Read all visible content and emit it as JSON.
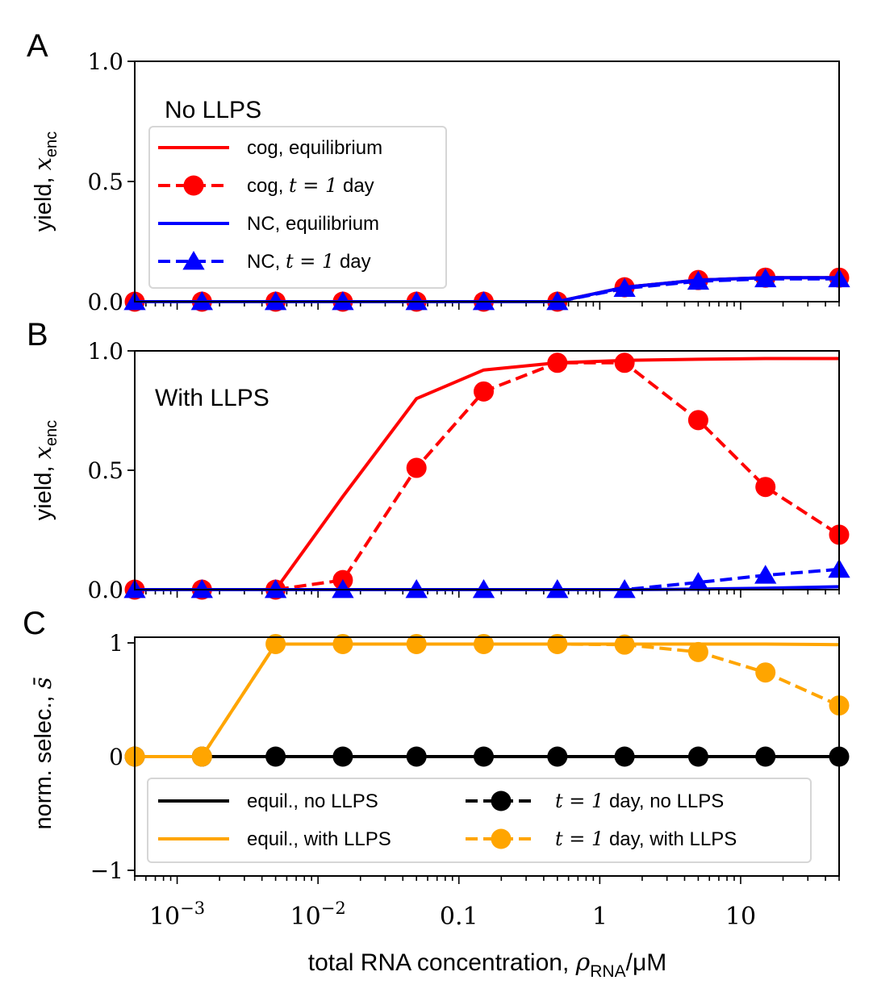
{
  "figure": {
    "xlabel": "total RNA concentration, ρRNA/μM",
    "xlabel_main": "total RNA concentration, ",
    "xlabel_rho": "ρ",
    "xlabel_sub": "RNA",
    "xlabel_unit": "/μM",
    "xtick_labels": [
      {
        "base": "10",
        "exp": "−3",
        "value": 0.001
      },
      {
        "base": "10",
        "exp": "−2",
        "value": 0.01
      },
      {
        "base": "0.1",
        "exp": "",
        "value": 0.1
      },
      {
        "base": "1",
        "exp": "",
        "value": 1
      },
      {
        "base": "10",
        "exp": "",
        "value": 10
      }
    ],
    "colors": {
      "red": "#ff0000",
      "blue": "#0000ff",
      "orange": "#ffa500",
      "black": "#000000"
    }
  },
  "chart_data": [
    {
      "panel": "A",
      "type": "line",
      "annotation": "No LLPS",
      "ylabel": "yield, x_enc",
      "ylabel_main": "yield, ",
      "ylabel_var": "x",
      "ylabel_sub": "enc",
      "xscale": "log",
      "xlim": [
        0.0005,
        50
      ],
      "ylim": [
        0,
        1
      ],
      "yticks": [
        "0.0",
        "0.5",
        "1.0"
      ],
      "ytick_values": [
        0,
        0.5,
        1
      ],
      "x": [
        0.0005,
        0.0015,
        0.005,
        0.015,
        0.05,
        0.15,
        0.5,
        1.5,
        5,
        15,
        50
      ],
      "legend_position": "upper-left",
      "series": [
        {
          "name": "cog, equilibrium",
          "label_text": "cog, equilibrium",
          "color": "#ff0000",
          "dash": "solid",
          "marker": "none",
          "values": [
            0,
            0,
            0,
            0,
            0,
            0,
            0,
            0.06,
            0.09,
            0.1,
            0.1
          ]
        },
        {
          "name": "cog, t = 1 day",
          "label_pre": "cog, ",
          "label_math": "t = 1",
          "label_post": " day",
          "color": "#ff0000",
          "dash": "dashed",
          "marker": "circle",
          "values": [
            0,
            0,
            0,
            0,
            0,
            0,
            0,
            0.06,
            0.09,
            0.1,
            0.1
          ]
        },
        {
          "name": "NC, equilibrium",
          "label_text": "NC, equilibrium",
          "color": "#0000ff",
          "dash": "solid",
          "marker": "none",
          "values": [
            0,
            0,
            0,
            0,
            0,
            0,
            0,
            0.06,
            0.09,
            0.1,
            0.1
          ]
        },
        {
          "name": "NC, t = 1 day",
          "label_pre": "NC, ",
          "label_math": "t = 1",
          "label_post": " day",
          "color": "#0000ff",
          "dash": "dashed",
          "marker": "triangle",
          "values": [
            0,
            0,
            0,
            0,
            0,
            0,
            0,
            0.055,
            0.085,
            0.095,
            0.095
          ]
        }
      ]
    },
    {
      "panel": "B",
      "type": "line",
      "annotation": "With LLPS",
      "ylabel": "yield, x_enc",
      "ylabel_main": "yield, ",
      "ylabel_var": "x",
      "ylabel_sub": "enc",
      "xscale": "log",
      "xlim": [
        0.0005,
        50
      ],
      "ylim": [
        0,
        1
      ],
      "yticks": [
        "0.0",
        "0.5",
        "1.0"
      ],
      "ytick_values": [
        0,
        0.5,
        1
      ],
      "x": [
        0.0005,
        0.0015,
        0.005,
        0.015,
        0.05,
        0.15,
        0.5,
        1.5,
        5,
        15,
        50
      ],
      "series": [
        {
          "name": "cog, equilibrium",
          "color": "#ff0000",
          "dash": "solid",
          "marker": "none",
          "values": [
            0,
            0,
            0,
            0.39,
            0.8,
            0.92,
            0.95,
            0.96,
            0.965,
            0.968,
            0.968
          ]
        },
        {
          "name": "cog, t = 1 day",
          "color": "#ff0000",
          "dash": "dashed",
          "marker": "circle",
          "values": [
            0,
            0,
            0,
            0.04,
            0.51,
            0.83,
            0.95,
            0.95,
            0.71,
            0.43,
            0.23
          ]
        },
        {
          "name": "NC, equilibrium",
          "color": "#0000ff",
          "dash": "solid",
          "marker": "none",
          "values": [
            0,
            0,
            0,
            0,
            0,
            0,
            0,
            0,
            0.002,
            0.006,
            0.012
          ]
        },
        {
          "name": "NC, t = 1 day",
          "color": "#0000ff",
          "dash": "dashed",
          "marker": "triangle",
          "values": [
            0,
            0,
            0,
            0,
            0,
            0,
            0,
            0,
            0.03,
            0.06,
            0.085
          ]
        }
      ]
    },
    {
      "panel": "C",
      "type": "line",
      "ylabel": "norm. selec., s̄",
      "ylabel_main": "norm. selec., ",
      "ylabel_var": "s̄",
      "xscale": "log",
      "xlim": [
        0.0005,
        50
      ],
      "ylim": [
        -1.05,
        1.05
      ],
      "yticks": [
        "−1",
        "0",
        "1"
      ],
      "ytick_values": [
        -1,
        0,
        1
      ],
      "x": [
        0.0005,
        0.0015,
        0.005,
        0.015,
        0.05,
        0.15,
        0.5,
        1.5,
        5,
        15,
        50
      ],
      "legend_position": "lower-center",
      "series": [
        {
          "name": "equil., no LLPS",
          "label_text": "equil., no LLPS",
          "color": "#000000",
          "dash": "solid",
          "marker": "none",
          "values": [
            0,
            0,
            0,
            0,
            0,
            0,
            0,
            0,
            0,
            0,
            0
          ]
        },
        {
          "name": "equil., with LLPS",
          "label_text": "equil., with LLPS",
          "color": "#ffa500",
          "dash": "solid",
          "marker": "none",
          "values": [
            0,
            0,
            0.99,
            0.99,
            0.99,
            0.99,
            0.99,
            0.99,
            0.99,
            0.99,
            0.985
          ]
        },
        {
          "name": "t = 1 day, no LLPS",
          "label_math": "t = 1",
          "label_post": " day, no LLPS",
          "color": "#000000",
          "dash": "dashed",
          "marker": "circle",
          "values": [
            0,
            0,
            0,
            0,
            0,
            0,
            0,
            0,
            0,
            0,
            0
          ]
        },
        {
          "name": "t = 1 day, with LLPS",
          "label_math": "t = 1",
          "label_post": " day, with LLPS",
          "color": "#ffa500",
          "dash": "dashed",
          "marker": "circle",
          "values": [
            0,
            0,
            0.99,
            0.99,
            0.99,
            0.99,
            0.99,
            0.985,
            0.92,
            0.74,
            0.45
          ]
        }
      ]
    }
  ]
}
